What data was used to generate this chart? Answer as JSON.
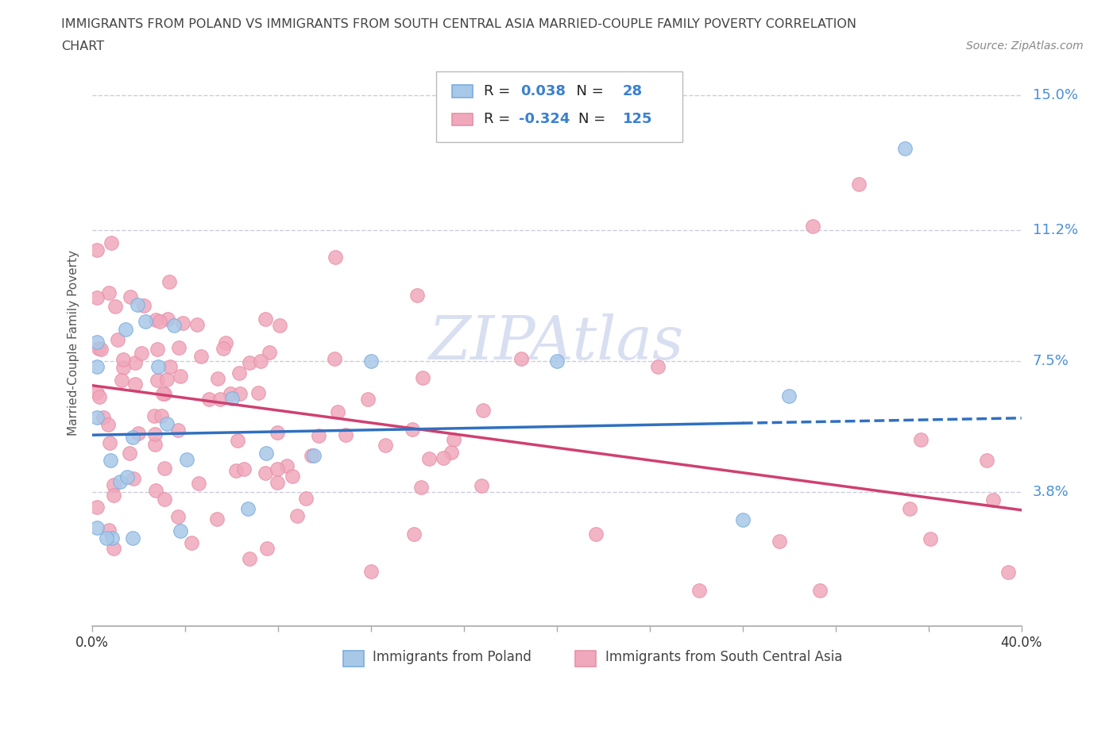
{
  "title_line1": "IMMIGRANTS FROM POLAND VS IMMIGRANTS FROM SOUTH CENTRAL ASIA MARRIED-COUPLE FAMILY POVERTY CORRELATION",
  "title_line2": "CHART",
  "source_text": "Source: ZipAtlas.com",
  "ylabel": "Married-Couple Family Poverty",
  "xlim": [
    0,
    0.4
  ],
  "ylim": [
    0,
    0.16
  ],
  "yticks": [
    0.038,
    0.075,
    0.112,
    0.15
  ],
  "ytick_labels": [
    "3.8%",
    "7.5%",
    "11.2%",
    "15.0%"
  ],
  "poland_color": "#a8c8e8",
  "poland_edge": "#7aade0",
  "sca_color": "#f0a8bc",
  "sca_edge": "#e890a8",
  "poland_R": 0.038,
  "poland_N": 28,
  "sca_R": -0.324,
  "sca_N": 125,
  "legend_label_poland": "Immigrants from Poland",
  "legend_label_sca": "Immigrants from South Central Asia",
  "trend_poland_intercept": 0.054,
  "trend_poland_slope": 0.012,
  "trend_poland_solid_end": 0.28,
  "trend_sca_intercept": 0.068,
  "trend_sca_slope": -0.088,
  "blue_line_color": "#3070c0",
  "pink_line_color": "#d04070",
  "grid_color": "#c8c8d8",
  "watermark_color": "#d8dff0"
}
